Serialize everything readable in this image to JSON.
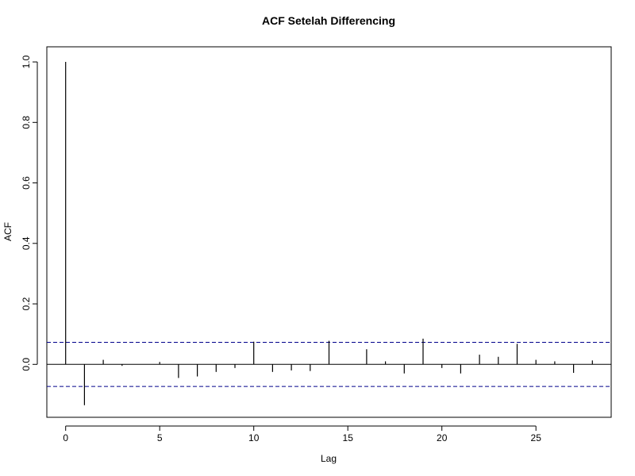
{
  "chart_data": {
    "type": "bar",
    "title": "ACF Setelah Differencing",
    "xlabel": "Lag",
    "ylabel": "ACF",
    "x": [
      0,
      1,
      2,
      3,
      4,
      5,
      6,
      7,
      8,
      9,
      10,
      11,
      12,
      13,
      14,
      15,
      16,
      17,
      18,
      19,
      20,
      21,
      22,
      23,
      24,
      25,
      26,
      27,
      28
    ],
    "values": [
      1.0,
      -0.135,
      0.015,
      -0.005,
      0.0,
      0.008,
      -0.045,
      -0.04,
      -0.025,
      -0.012,
      0.075,
      -0.025,
      -0.02,
      -0.022,
      0.078,
      0.0,
      0.05,
      0.01,
      -0.03,
      0.085,
      -0.012,
      -0.03,
      0.032,
      0.025,
      0.068,
      0.015,
      0.01,
      -0.028,
      0.013
    ],
    "ci": [
      0.073,
      -0.073
    ],
    "xlim": [
      -1,
      29
    ],
    "ylim": [
      -0.175,
      1.05
    ],
    "xticks": [
      0,
      5,
      10,
      15,
      20,
      25
    ],
    "yticks": [
      0.0,
      0.2,
      0.4,
      0.6,
      0.8,
      1.0
    ],
    "ytick_labels": [
      "0.0",
      "0.2",
      "0.4",
      "0.6",
      "0.8",
      "1.0"
    ],
    "ci_color": "#00008B"
  }
}
